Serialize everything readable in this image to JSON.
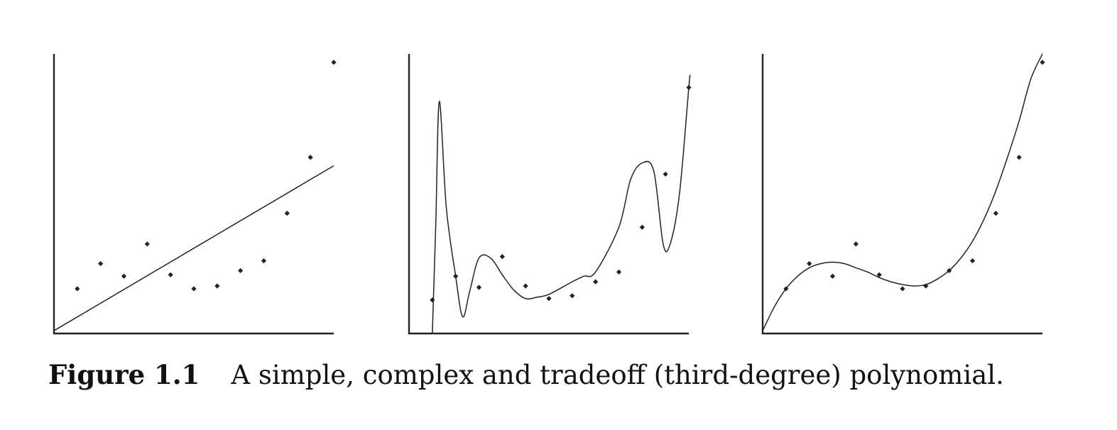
{
  "caption": {
    "label": "Figure 1.1",
    "text": "A simple, complex and tradeoff (third-degree) polynomial."
  },
  "chart_data": [
    {
      "type": "scatter",
      "grid": false,
      "xlim": [
        0,
        12
      ],
      "ylim": [
        0,
        10
      ],
      "points": {
        "x": [
          1,
          2,
          3,
          4,
          5,
          6,
          7,
          8,
          9,
          10,
          11,
          12
        ],
        "y": [
          1.6,
          2.5,
          2.05,
          3.2,
          2.1,
          1.6,
          1.7,
          2.25,
          2.6,
          4.3,
          6.3,
          9.7
        ]
      },
      "fit": {
        "degree": 1,
        "x": [
          0,
          12
        ],
        "y": [
          0.1,
          6.0
        ]
      }
    },
    {
      "type": "scatter",
      "grid": false,
      "xlim": [
        0,
        12
      ],
      "ylim": [
        0,
        10
      ],
      "points": {
        "x": [
          1,
          2,
          3,
          4,
          5,
          6,
          7,
          8,
          9,
          10,
          11,
          12
        ],
        "y": [
          1.2,
          2.05,
          1.65,
          2.75,
          1.7,
          1.25,
          1.35,
          1.85,
          2.2,
          3.8,
          5.7,
          8.8
        ]
      },
      "fit": {
        "degree": 11,
        "x": [
          1.0,
          1.15,
          1.3,
          1.6,
          2.0,
          2.3,
          2.6,
          3.0,
          3.5,
          4.0,
          4.5,
          5.0,
          5.5,
          6.0,
          7.0,
          7.5,
          8.0,
          9.0,
          9.5,
          10.0,
          10.5,
          10.9,
          11.2,
          11.6,
          12.0,
          12.05
        ],
        "y": [
          0.0,
          4.0,
          8.3,
          4.5,
          2.05,
          0.6,
          1.5,
          2.7,
          2.7,
          2.1,
          1.55,
          1.25,
          1.3,
          1.4,
          1.85,
          2.05,
          2.2,
          3.8,
          5.5,
          6.1,
          5.8,
          3.2,
          3.2,
          5.0,
          8.8,
          9.2
        ]
      }
    },
    {
      "type": "scatter",
      "grid": false,
      "xlim": [
        0,
        12
      ],
      "ylim": [
        0,
        10
      ],
      "points": {
        "x": [
          1,
          2,
          3,
          4,
          5,
          6,
          7,
          8,
          9,
          10,
          11,
          12
        ],
        "y": [
          1.6,
          2.5,
          2.05,
          3.2,
          2.1,
          1.6,
          1.7,
          2.25,
          2.6,
          4.3,
          6.3,
          9.7
        ]
      },
      "fit": {
        "degree": 3,
        "x": [
          0,
          0.5,
          1,
          1.5,
          2,
          2.5,
          3,
          3.5,
          4,
          4.5,
          5,
          5.5,
          6,
          6.5,
          7,
          7.5,
          8,
          8.5,
          9,
          9.5,
          10,
          10.5,
          11,
          11.5,
          12
        ],
        "y": [
          0.1,
          0.95,
          1.6,
          2.05,
          2.35,
          2.5,
          2.55,
          2.5,
          2.35,
          2.2,
          2.0,
          1.85,
          1.75,
          1.7,
          1.75,
          1.95,
          2.25,
          2.7,
          3.3,
          4.1,
          5.1,
          6.3,
          7.6,
          9.1,
          10.0
        ]
      }
    }
  ]
}
